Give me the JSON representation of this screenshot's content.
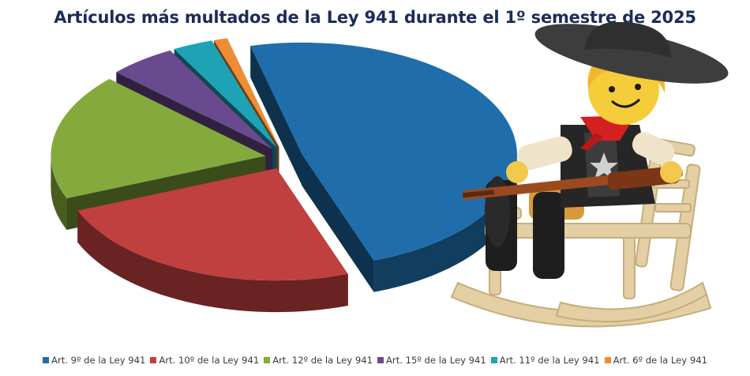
{
  "chart_data": {
    "type": "pie",
    "title": "Artículos más multados de la Ley 941 durante el 1º semestre de 2025",
    "categories": [
      "Art. 9º de la Ley 941",
      "Art. 10º de la Ley 941",
      "Art. 12º de la Ley 941",
      "Art. 15º de la Ley 941",
      "Art. 11º de la Ley 941",
      "Art. 6º de la Ley 941"
    ],
    "values": [
      48,
      24,
      18,
      5,
      3,
      1
    ],
    "colors": [
      "#1f6eab",
      "#c0403f",
      "#84a93c",
      "#6a4a8f",
      "#1ea3b6",
      "#ef8d35"
    ],
    "legend_position": "bottom",
    "style": "exploded-3d-pie"
  },
  "illustration": {
    "figure_icon": "cowboy-figurine-rocking-chair-icon"
  }
}
